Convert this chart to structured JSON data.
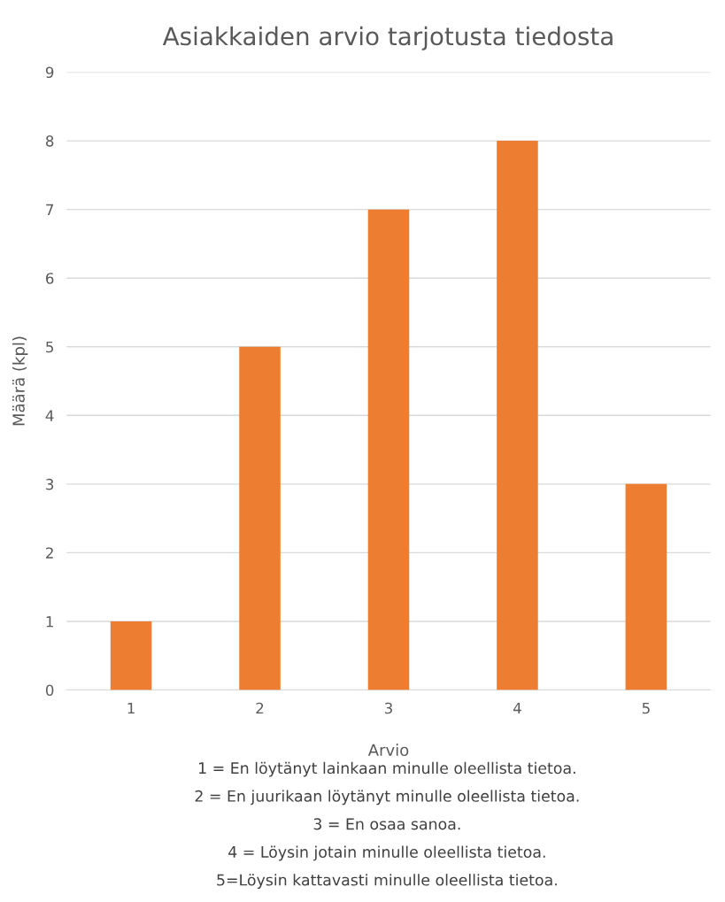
{
  "chart_data": {
    "type": "bar",
    "title": "Asiakkaiden arvio tarjotusta tiedosta",
    "xlabel": "Arvio",
    "ylabel": "Määrä (kpl)",
    "categories": [
      "1",
      "2",
      "3",
      "4",
      "5"
    ],
    "values": [
      1,
      5,
      7,
      8,
      3
    ],
    "color": "#ed7d31",
    "ylim": [
      0,
      9
    ],
    "yticks": [
      0,
      1,
      2,
      3,
      4,
      5,
      6,
      7,
      8,
      9
    ],
    "grid": "y",
    "annotations": [
      "1 = En löytänyt lainkaan minulle oleellista tietoa.",
      "2 = En juurikaan löytänyt minulle oleellista tietoa.",
      "3 = En osaa sanoa.",
      "4 = Löysin jotain minulle oleellista tietoa.",
      "5=Löysin kattavasti minulle oleellista tietoa."
    ]
  }
}
